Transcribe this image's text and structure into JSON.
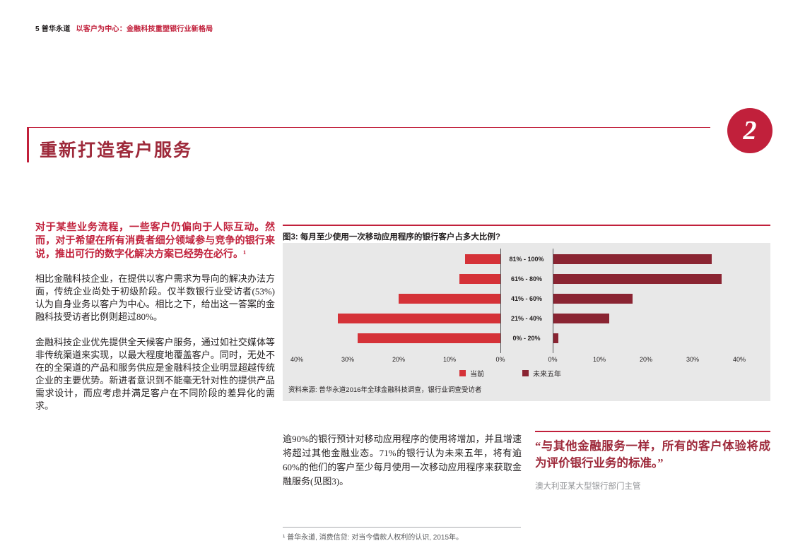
{
  "page": {
    "header": {
      "page_number": "5",
      "brand": "普华永道",
      "doc_title": "以客户为中心：金融科技重塑银行业新格局"
    },
    "chapter_number": "2",
    "section_title": "重新打造客户服务"
  },
  "left_column": {
    "lead": "对于某些业务流程，一些客户仍偏向于人际互动。然而，对于希望在所有消费者细分领域参与竞争的银行来说，推出可行的数字化解决方案已经势在必行。¹",
    "paragraphs": [
      "相比金融科技企业，在提供以客户需求为导向的解决办法方面，传统企业尚处于初级阶段。仅半数银行业受访者(53%)认为自身业务以客户为中心。相比之下，给出这一答案的金融科技受访者比例则超过80%。",
      "金融科技企业优先提供全天候客户服务，通过如社交媒体等非传统渠道来实现，以最大程度地覆盖客户。同时，无处不在的全渠道的产品和服务供应是金融科技企业明显超越传统企业的主要优势。新进者意识到不能毫无针对性的提供产品需求设计，而应考虑并满足客户在不同阶段的差异化的需求。"
    ]
  },
  "chart_data": {
    "type": "bar",
    "orientation": "horizontal-diverging",
    "title": "图3: 每月至少使用一次移动应用程序的银行客户占多大比例?",
    "categories": [
      "81% - 100%",
      "61% - 80%",
      "41% - 60%",
      "21% - 40%",
      "0% - 20%"
    ],
    "series": [
      {
        "name": "当前",
        "direction": "left",
        "color": "#d53238",
        "values": [
          7,
          8,
          20,
          32,
          28
        ]
      },
      {
        "name": "未来五年",
        "direction": "right",
        "color": "#8a2432",
        "values": [
          34,
          36,
          17,
          12,
          1
        ]
      }
    ],
    "axis_ticks_left": [
      "40%",
      "30%",
      "20%",
      "10%",
      "0%"
    ],
    "axis_ticks_right": [
      "0%",
      "10%",
      "20%",
      "30%",
      "40%"
    ],
    "xlim": [
      0,
      40
    ],
    "grid": false,
    "legend_position": "bottom-center",
    "source": "资料来源: 普华永道2016年全球金融科技调查，银行业调查受访者"
  },
  "body_below_chart": "逾90%的银行预计对移动应用程序的使用将增加，并且增速将超过其他金融业态。71%的银行认为未来五年，将有逾60%的他们的客户至少每月使用一次移动应用程序来获取金融服务(见图3)。",
  "quote": {
    "text": "“与其他金融服务一样，所有的客户体验将成为评价银行业务的标准。”",
    "attribution": "澳大利亚某大型银行部门主管"
  },
  "footnote": "¹ 普华永道, 消费信贷: 对当今借款人权利的认识, 2015年。",
  "colors": {
    "accent_red": "#c1203b",
    "title_dark_red": "#9e2a3b",
    "bar_current": "#d53238",
    "bar_future": "#8a2432",
    "panel_gray": "#e8e8e8",
    "text_dark": "#231f20",
    "text_gray": "#939598"
  }
}
